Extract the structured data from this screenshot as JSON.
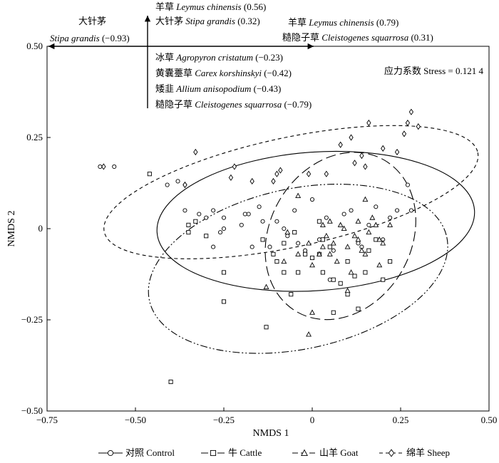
{
  "chart_data": {
    "type": "scatter",
    "xlabel": "NMDS 1",
    "ylabel": "NMDS 2",
    "xlim": [
      -0.75,
      0.5
    ],
    "ylim": [
      -0.5,
      0.5
    ],
    "x_ticks": [
      -0.75,
      -0.5,
      -0.25,
      0,
      0.25,
      0.5
    ],
    "x_tick_labels": [
      "−0.75",
      "−0.50",
      "−0.25",
      "0",
      "0.25",
      "0.50"
    ],
    "y_ticks": [
      -0.5,
      -0.25,
      0,
      0.25,
      0.5
    ],
    "y_tick_labels": [
      "−0.50",
      "−0.25",
      "0",
      "0.25",
      "0.50"
    ],
    "grid": false,
    "legend_position": "bottom",
    "stress_label": "应力系数 Stress = 0.121 4",
    "species_left": {
      "cn": "大针茅",
      "latin": "Stipa grandis",
      "value": "(−0.93)"
    },
    "species_up": [
      {
        "cn": "羊草",
        "latin": "Leymus  chinensis",
        "value": "(0.56)"
      },
      {
        "cn": "大针茅",
        "latin": "Stipa grandis",
        "value": "(0.32)"
      }
    ],
    "species_right": [
      {
        "cn": "羊草",
        "latin": "Leymus chinensis",
        "value": "(0.79)"
      },
      {
        "cn": "糙隐子草",
        "latin": "Cleistogenes squarrosa",
        "value": "(0.31)"
      }
    ],
    "species_down": [
      {
        "cn": "冰草",
        "latin": "Agropyron cristatum",
        "value": "(−0.23)"
      },
      {
        "cn": "黄囊薹草",
        "latin": "Carex korshinskyi",
        "value": "(−0.42)"
      },
      {
        "cn": "矮韭",
        "latin": "Allium anisopodium",
        "value": "(−0.43)"
      },
      {
        "cn": "糙隐子草",
        "latin": "Cleistogenes squarrosa",
        "value": "(−0.79)"
      }
    ],
    "series": [
      {
        "name": "对照 Control",
        "marker": "circle",
        "line_style": "solid",
        "ellipse": {
          "cx": 0.01,
          "cy": 0.02,
          "rx": 0.45,
          "ry": 0.19,
          "angle_deg": -4
        },
        "points": [
          [
            -0.56,
            0.17
          ],
          [
            -0.6,
            0.17
          ],
          [
            -0.41,
            0.12
          ],
          [
            -0.38,
            0.13
          ],
          [
            -0.36,
            0.05
          ],
          [
            -0.32,
            0.04
          ],
          [
            -0.3,
            0.03
          ],
          [
            -0.28,
            0.05
          ],
          [
            -0.25,
            0.03
          ],
          [
            -0.25,
            0.0
          ],
          [
            -0.18,
            0.04
          ],
          [
            -0.15,
            0.06
          ],
          [
            -0.1,
            0.02
          ],
          [
            -0.08,
            0.0
          ],
          [
            -0.07,
            -0.02
          ],
          [
            -0.05,
            0.05
          ],
          [
            -0.04,
            -0.04
          ],
          [
            -0.02,
            -0.06
          ],
          [
            0.02,
            -0.03
          ],
          [
            0.04,
            0.03
          ],
          [
            0.06,
            -0.06
          ],
          [
            0.09,
            0.04
          ],
          [
            0.13,
            -0.04
          ],
          [
            0.16,
            0.01
          ],
          [
            0.18,
            0.06
          ],
          [
            0.2,
            -0.03
          ],
          [
            0.22,
            0.03
          ],
          [
            0.24,
            0.05
          ],
          [
            0.27,
            0.12
          ],
          [
            0.28,
            0.05
          ],
          [
            -0.19,
            0.04
          ],
          [
            -0.14,
            0.02
          ],
          [
            -0.12,
            -0.05
          ],
          [
            0.0,
            0.08
          ],
          [
            -0.26,
            -0.01
          ],
          [
            0.11,
            0.05
          ],
          [
            -0.28,
            -0.05
          ],
          [
            -0.17,
            -0.05
          ],
          [
            0.05,
            -0.14
          ],
          [
            0.14,
            -0.05
          ],
          [
            -0.2,
            0.01
          ]
        ]
      },
      {
        "name": "牛 Cattle",
        "marker": "square",
        "line_style": "dash-dot-dot",
        "ellipse": {
          "cx": -0.04,
          "cy": -0.11,
          "rx": 0.43,
          "ry": 0.22,
          "angle_deg": -12
        },
        "points": [
          [
            -0.46,
            0.15
          ],
          [
            -0.35,
            0.01
          ],
          [
            -0.35,
            -0.01
          ],
          [
            -0.33,
            0.02
          ],
          [
            -0.3,
            -0.02
          ],
          [
            -0.25,
            -0.12
          ],
          [
            -0.25,
            -0.2
          ],
          [
            -0.14,
            -0.03
          ],
          [
            -0.11,
            -0.07
          ],
          [
            -0.08,
            -0.12
          ],
          [
            -0.06,
            -0.18
          ],
          [
            -0.04,
            -0.12
          ],
          [
            -0.02,
            -0.07
          ],
          [
            0.0,
            -0.08
          ],
          [
            0.03,
            -0.12
          ],
          [
            0.05,
            -0.05
          ],
          [
            0.06,
            -0.14
          ],
          [
            0.08,
            -0.15
          ],
          [
            0.1,
            -0.09
          ],
          [
            0.12,
            -0.13
          ],
          [
            0.15,
            -0.12
          ],
          [
            0.16,
            -0.06
          ],
          [
            0.2,
            -0.14
          ],
          [
            0.22,
            -0.09
          ],
          [
            -0.13,
            -0.27
          ],
          [
            0.06,
            -0.23
          ],
          [
            0.13,
            -0.22
          ],
          [
            -0.4,
            -0.42
          ],
          [
            0.02,
            -0.07
          ],
          [
            -0.1,
            -0.09
          ],
          [
            0.1,
            -0.18
          ],
          [
            -0.05,
            -0.01
          ],
          [
            0.03,
            -0.03
          ],
          [
            0.18,
            -0.03
          ],
          [
            0.02,
            0.02
          ],
          [
            -0.08,
            -0.04
          ]
        ]
      },
      {
        "name": "山羊 Goat",
        "marker": "triangle",
        "line_style": "long-dash",
        "ellipse": {
          "cx": 0.08,
          "cy": -0.02,
          "rx": 0.2,
          "ry": 0.24,
          "angle_deg": 30
        },
        "points": [
          [
            -0.13,
            -0.16
          ],
          [
            -0.07,
            -0.01
          ],
          [
            -0.04,
            -0.07
          ],
          [
            -0.01,
            -0.04
          ],
          [
            0.0,
            -0.1
          ],
          [
            0.0,
            -0.23
          ],
          [
            0.02,
            -0.07
          ],
          [
            0.03,
            -0.05
          ],
          [
            0.04,
            -0.02
          ],
          [
            0.05,
            0.02
          ],
          [
            0.06,
            -0.04
          ],
          [
            0.07,
            -0.09
          ],
          [
            0.09,
            0.0
          ],
          [
            0.1,
            -0.05
          ],
          [
            0.11,
            -0.12
          ],
          [
            0.12,
            -0.02
          ],
          [
            0.13,
            0.02
          ],
          [
            0.14,
            -0.06
          ],
          [
            0.15,
            -0.07
          ],
          [
            0.16,
            -0.01
          ],
          [
            0.17,
            0.03
          ],
          [
            0.18,
            0.01
          ],
          [
            0.19,
            -0.03
          ],
          [
            0.19,
            -0.1
          ],
          [
            0.2,
            -0.04
          ],
          [
            -0.01,
            -0.29
          ],
          [
            -0.08,
            -0.09
          ],
          [
            0.1,
            -0.17
          ],
          [
            0.05,
            -0.07
          ],
          [
            0.15,
            0.08
          ],
          [
            0.03,
            0.01
          ],
          [
            0.08,
            0.01
          ],
          [
            0.13,
            -0.03
          ],
          [
            0.22,
            0.01
          ],
          [
            -0.04,
            0.09
          ]
        ]
      },
      {
        "name": "绵羊 Sheep",
        "marker": "diamond",
        "line_style": "short-dash",
        "ellipse": {
          "cx": -0.06,
          "cy": 0.1,
          "rx": 0.54,
          "ry": 0.15,
          "angle_deg": -12
        },
        "points": [
          [
            -0.59,
            0.17
          ],
          [
            -0.36,
            0.12
          ],
          [
            -0.33,
            0.21
          ],
          [
            -0.23,
            0.14
          ],
          [
            -0.17,
            0.13
          ],
          [
            -0.11,
            0.13
          ],
          [
            -0.09,
            0.16
          ],
          [
            -0.01,
            0.15
          ],
          [
            0.04,
            0.15
          ],
          [
            0.08,
            0.23
          ],
          [
            0.12,
            0.18
          ],
          [
            0.14,
            0.2
          ],
          [
            0.15,
            0.17
          ],
          [
            0.2,
            0.22
          ],
          [
            0.26,
            0.26
          ],
          [
            0.27,
            0.29
          ],
          [
            0.28,
            0.32
          ],
          [
            0.3,
            0.28
          ],
          [
            0.16,
            0.29
          ],
          [
            0.11,
            0.25
          ],
          [
            -0.22,
            0.17
          ],
          [
            -0.36,
            0.12
          ],
          [
            0.24,
            0.21
          ],
          [
            -0.1,
            0.15
          ]
        ]
      }
    ]
  }
}
